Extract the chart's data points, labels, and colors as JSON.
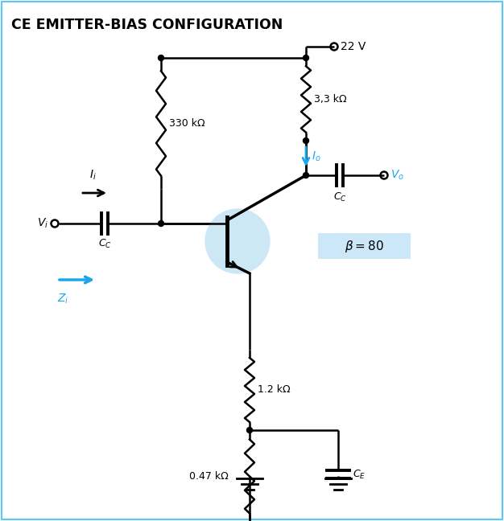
{
  "title": "CE EMITTER-BIAS CONFIGURATION",
  "title_fontsize": 12.5,
  "bg_color": "#ffffff",
  "border_color": "#5bc8f5",
  "cyan_color": "#1aa7ec",
  "light_blue_bg": "#cce8f8",
  "transistor_bg": "#cde8f5",
  "vcc": "22 V",
  "r1": "330 kΩ",
  "r2": "3,3 kΩ",
  "r3": "1.2 kΩ",
  "r4": "0.47 kΩ",
  "lw": 1.8,
  "lw_thick": 3.0,
  "zamp": 6,
  "n_zigs": 8
}
